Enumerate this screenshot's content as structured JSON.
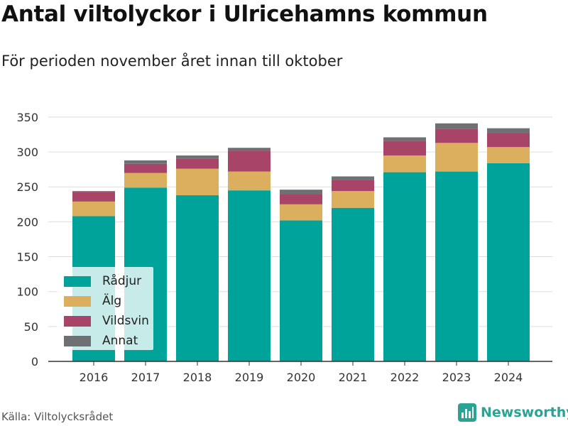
{
  "title": "Antal viltolyckor i Ulricehamns kommun",
  "subtitle": "För perioden november året innan till oktober",
  "source": "Källa: Viltolycksrådet",
  "brand": "Newsworthy",
  "colors": {
    "radjur": "#00a39a",
    "alg": "#dcaf5e",
    "vildsvin": "#a84468",
    "annat": "#6e7074",
    "grid": "#dddddd",
    "axis": "#333333",
    "brand": "#2aa394"
  },
  "chart_data": {
    "type": "bar",
    "stacked": true,
    "categories": [
      "2016",
      "2017",
      "2018",
      "2019",
      "2020",
      "2021",
      "2022",
      "2023",
      "2024"
    ],
    "series": [
      {
        "name": "Rådjur",
        "color": "#00a39a",
        "values": [
          208,
          249,
          238,
          245,
          202,
          220,
          271,
          272,
          284
        ]
      },
      {
        "name": "Älg",
        "color": "#dcaf5e",
        "values": [
          21,
          21,
          38,
          27,
          23,
          24,
          24,
          41,
          23
        ]
      },
      {
        "name": "Vildsvin",
        "color": "#a84468",
        "values": [
          14,
          13,
          14,
          30,
          15,
          16,
          21,
          20,
          20
        ]
      },
      {
        "name": "Annat",
        "color": "#6e7074",
        "values": [
          1,
          5,
          5,
          4,
          6,
          5,
          5,
          8,
          7
        ]
      }
    ],
    "yticks": [
      0,
      50,
      100,
      150,
      200,
      250,
      300,
      350
    ],
    "ylim": [
      0,
      350
    ],
    "grid": true,
    "legend_position": "bottom-left",
    "xlabel": "",
    "ylabel": ""
  }
}
